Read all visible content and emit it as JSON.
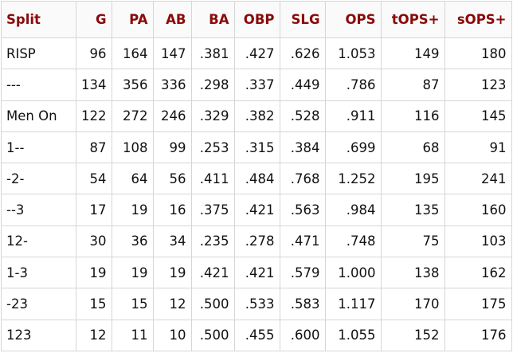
{
  "table": {
    "header": [
      "Split",
      "G",
      "PA",
      "AB",
      "BA",
      "OBP",
      "SLG",
      "OPS",
      "tOPS+",
      "sOPS+"
    ],
    "rows": [
      [
        "RISP",
        "96",
        "164",
        "147",
        ".381",
        ".427",
        ".626",
        "1.053",
        "149",
        "180"
      ],
      [
        "---",
        "134",
        "356",
        "336",
        ".298",
        ".337",
        ".449",
        ".786",
        "87",
        "123"
      ],
      [
        "Men On",
        "122",
        "272",
        "246",
        ".329",
        ".382",
        ".528",
        ".911",
        "116",
        "145"
      ],
      [
        "1--",
        "87",
        "108",
        "99",
        ".253",
        ".315",
        ".384",
        ".699",
        "68",
        "91"
      ],
      [
        "-2-",
        "54",
        "64",
        "56",
        ".411",
        ".484",
        ".768",
        "1.252",
        "195",
        "241"
      ],
      [
        "--3",
        "17",
        "19",
        "16",
        ".375",
        ".421",
        ".563",
        ".984",
        "135",
        "160"
      ],
      [
        "12-",
        "30",
        "36",
        "34",
        ".235",
        ".278",
        ".471",
        ".748",
        "75",
        "103"
      ],
      [
        "1-3",
        "19",
        "19",
        "19",
        ".421",
        ".421",
        ".579",
        "1.000",
        "138",
        "162"
      ],
      [
        "-23",
        "15",
        "15",
        "12",
        ".500",
        ".533",
        ".583",
        "1.117",
        "170",
        "175"
      ],
      [
        "123",
        "12",
        "11",
        "10",
        ".500",
        ".455",
        ".600",
        "1.055",
        "152",
        "176"
      ]
    ]
  }
}
